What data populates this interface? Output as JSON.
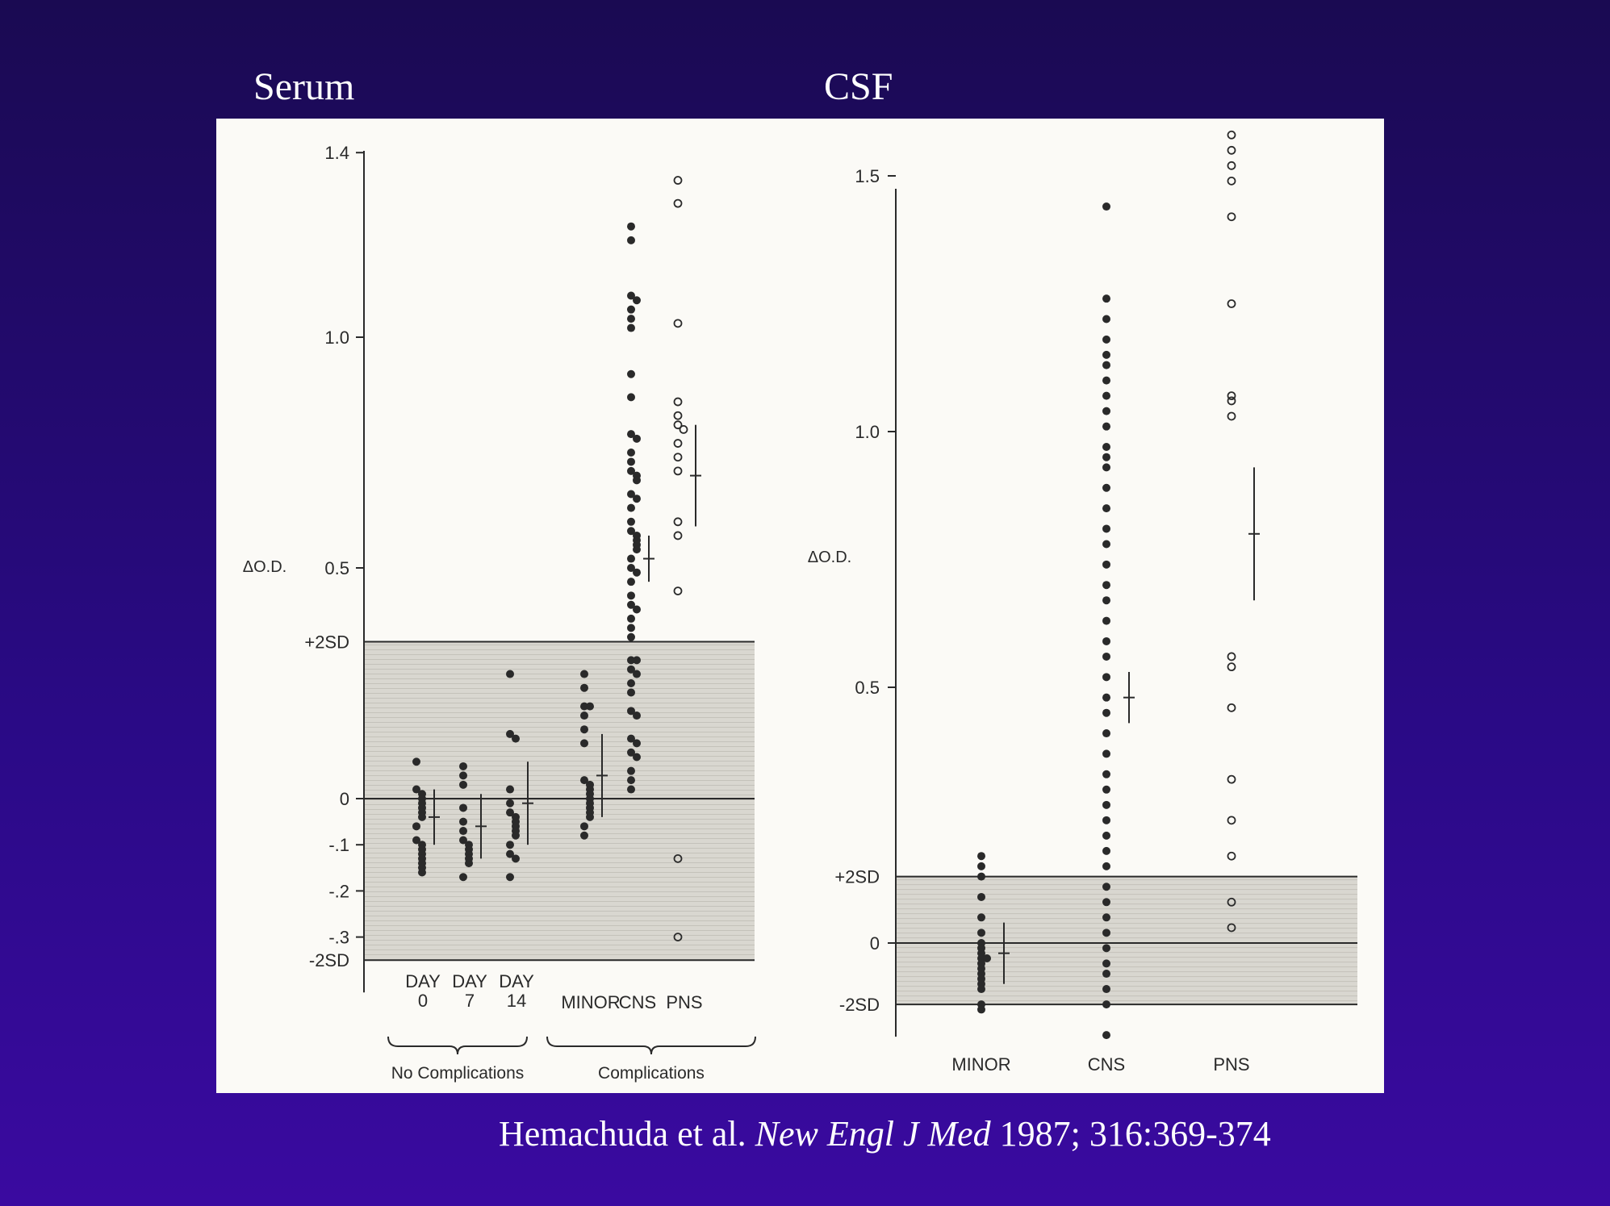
{
  "slide": {
    "serum_title": "Serum",
    "csf_title": "CSF",
    "citation": {
      "authors": "Hemachuda et al.",
      "journal": "New Engl J Med",
      "details": "1987; 316:369-374"
    }
  },
  "colors": {
    "background_top": "#1a0a52",
    "background_bottom": "#3a0aa0",
    "panel": "#fbfaf6",
    "band": "#d9d7d0",
    "ink": "#2a2a2a"
  },
  "chart_data": [
    {
      "type": "scatter",
      "title": "Serum",
      "ylabel": "ΔO.D.",
      "ylim": [
        -0.35,
        1.45
      ],
      "y_ticks": [
        {
          "value": 1.4,
          "label": "1.4"
        },
        {
          "value": 1.0,
          "label": "1.0"
        },
        {
          "value": 0.5,
          "label": "0.5"
        },
        {
          "value": 0.0,
          "label": "0"
        },
        {
          "value": -0.1,
          "label": "-.1"
        },
        {
          "value": -0.2,
          "label": "-.2"
        },
        {
          "value": -0.3,
          "label": "-.3"
        }
      ],
      "reference_band": {
        "upper": 0.34,
        "upper_label": "+2SD",
        "lower": -0.35,
        "lower_label": "-2SD"
      },
      "categories": [
        {
          "label_lines": [
            "DAY",
            "0"
          ],
          "group": "No Complications",
          "filled": true,
          "values": [
            0.08,
            0.02,
            0.01,
            0.0,
            -0.01,
            -0.02,
            -0.03,
            -0.04,
            -0.06,
            -0.09,
            -0.1,
            -0.11,
            -0.12,
            -0.13,
            -0.14,
            -0.15,
            -0.16
          ],
          "mean": -0.04,
          "sd": 0.06
        },
        {
          "label_lines": [
            "DAY",
            "7"
          ],
          "group": "No Complications",
          "filled": true,
          "values": [
            0.07,
            0.05,
            0.03,
            -0.02,
            -0.05,
            -0.07,
            -0.09,
            -0.1,
            -0.11,
            -0.12,
            -0.13,
            -0.14,
            -0.17
          ],
          "mean": -0.06,
          "sd": 0.07
        },
        {
          "label_lines": [
            "DAY",
            "14"
          ],
          "group": "No Complications",
          "filled": true,
          "values": [
            0.27,
            0.14,
            0.13,
            0.02,
            -0.01,
            -0.03,
            -0.04,
            -0.05,
            -0.06,
            -0.07,
            -0.08,
            -0.1,
            -0.12,
            -0.13,
            -0.17
          ],
          "mean": -0.01,
          "sd": 0.09
        },
        {
          "label_lines": [
            "MINOR"
          ],
          "group": "Complications",
          "filled": true,
          "values": [
            0.27,
            0.24,
            0.2,
            0.2,
            0.18,
            0.15,
            0.12,
            0.04,
            0.03,
            0.02,
            0.01,
            0.0,
            -0.01,
            -0.02,
            -0.03,
            -0.04,
            -0.06,
            -0.08
          ],
          "mean": 0.05,
          "sd": 0.09
        },
        {
          "label_lines": [
            "CNS"
          ],
          "group": "Complications",
          "filled": true,
          "values": [
            1.24,
            1.21,
            1.09,
            1.08,
            1.06,
            1.04,
            1.02,
            0.92,
            0.87,
            0.79,
            0.78,
            0.75,
            0.73,
            0.71,
            0.7,
            0.69,
            0.66,
            0.65,
            0.63,
            0.6,
            0.58,
            0.57,
            0.56,
            0.55,
            0.54,
            0.52,
            0.5,
            0.49,
            0.47,
            0.44,
            0.42,
            0.41,
            0.39,
            0.37,
            0.35,
            0.3,
            0.3,
            0.28,
            0.27,
            0.25,
            0.23,
            0.19,
            0.18,
            0.13,
            0.12,
            0.1,
            0.09,
            0.06,
            0.04,
            0.02
          ],
          "mean": 0.52,
          "sd": 0.05
        },
        {
          "label_lines": [
            "PNS"
          ],
          "group": "Complications",
          "filled": false,
          "values": [
            1.34,
            1.29,
            1.03,
            0.86,
            0.83,
            0.81,
            0.8,
            0.77,
            0.74,
            0.71,
            0.6,
            0.57,
            0.45,
            -0.13,
            -0.3
          ],
          "mean": 0.7,
          "sd": 0.11
        }
      ],
      "group_labels": [
        "No Complications",
        "Complications"
      ]
    },
    {
      "type": "scatter",
      "title": "CSF",
      "ylabel": "ΔO.D.",
      "ylim": [
        -0.12,
        1.55
      ],
      "y_ticks": [
        {
          "value": 1.5,
          "label": "1.5"
        },
        {
          "value": 1.0,
          "label": "1.0"
        },
        {
          "value": 0.5,
          "label": "0.5"
        },
        {
          "value": 0.0,
          "label": "0"
        }
      ],
      "reference_band": {
        "upper": 0.13,
        "upper_label": "+2SD",
        "lower": -0.12,
        "lower_label": "-2SD"
      },
      "categories": [
        {
          "label_lines": [
            "MINOR"
          ],
          "filled": true,
          "values": [
            0.17,
            0.15,
            0.13,
            0.09,
            0.05,
            0.02,
            0.0,
            -0.01,
            -0.02,
            -0.03,
            -0.03,
            -0.04,
            -0.05,
            -0.06,
            -0.07,
            -0.08,
            -0.09,
            -0.12,
            -0.13
          ],
          "mean": -0.02,
          "sd": 0.06
        },
        {
          "label_lines": [
            "CNS"
          ],
          "filled": true,
          "values": [
            1.44,
            1.26,
            1.22,
            1.18,
            1.15,
            1.13,
            1.1,
            1.07,
            1.04,
            1.01,
            0.97,
            0.95,
            0.93,
            0.89,
            0.85,
            0.81,
            0.78,
            0.74,
            0.7,
            0.67,
            0.63,
            0.59,
            0.56,
            0.52,
            0.48,
            0.45,
            0.41,
            0.37,
            0.33,
            0.3,
            0.27,
            0.24,
            0.21,
            0.18,
            0.15,
            0.11,
            0.08,
            0.05,
            0.02,
            -0.01,
            -0.04,
            -0.06,
            -0.09,
            -0.12,
            -0.18
          ],
          "mean": 0.48,
          "sd": 0.05
        },
        {
          "label_lines": [
            "PNS"
          ],
          "filled": false,
          "values": [
            1.58,
            1.55,
            1.52,
            1.49,
            1.42,
            1.25,
            1.07,
            1.06,
            1.03,
            0.56,
            0.54,
            0.46,
            0.32,
            0.24,
            0.17,
            0.08,
            0.03
          ],
          "mean": 0.8,
          "sd": 0.13
        }
      ]
    }
  ]
}
